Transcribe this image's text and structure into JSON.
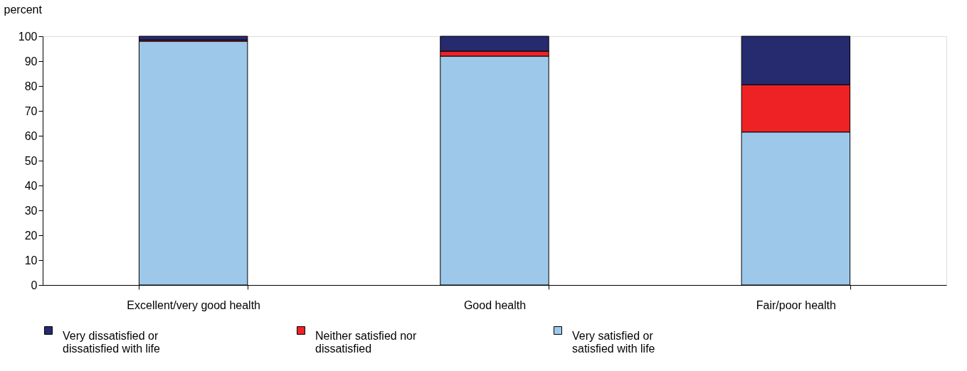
{
  "chart_data": {
    "type": "bar",
    "ylabel": "percent",
    "categories": [
      "Excellent/very good health",
      "Good health",
      "Fair/poor health"
    ],
    "stacked": true,
    "series": [
      {
        "name": "Very satisfied or satisfied with life",
        "color": "#9dc8ea",
        "values": [
          98,
          92,
          61.5
        ]
      },
      {
        "name": "Neither satisfied nor dissatisfied",
        "color": "#ee2224",
        "values": [
          0.5,
          2,
          19
        ]
      },
      {
        "name": "Very dissatisfied or dissatisfied with life",
        "color": "#262a6e",
        "values": [
          1.5,
          6,
          19.5
        ]
      }
    ],
    "ylim": [
      0,
      100
    ],
    "yticks": [
      0,
      10,
      20,
      30,
      40,
      50,
      60,
      70,
      80,
      90,
      100
    ],
    "grid": false,
    "legend": "bottom"
  }
}
